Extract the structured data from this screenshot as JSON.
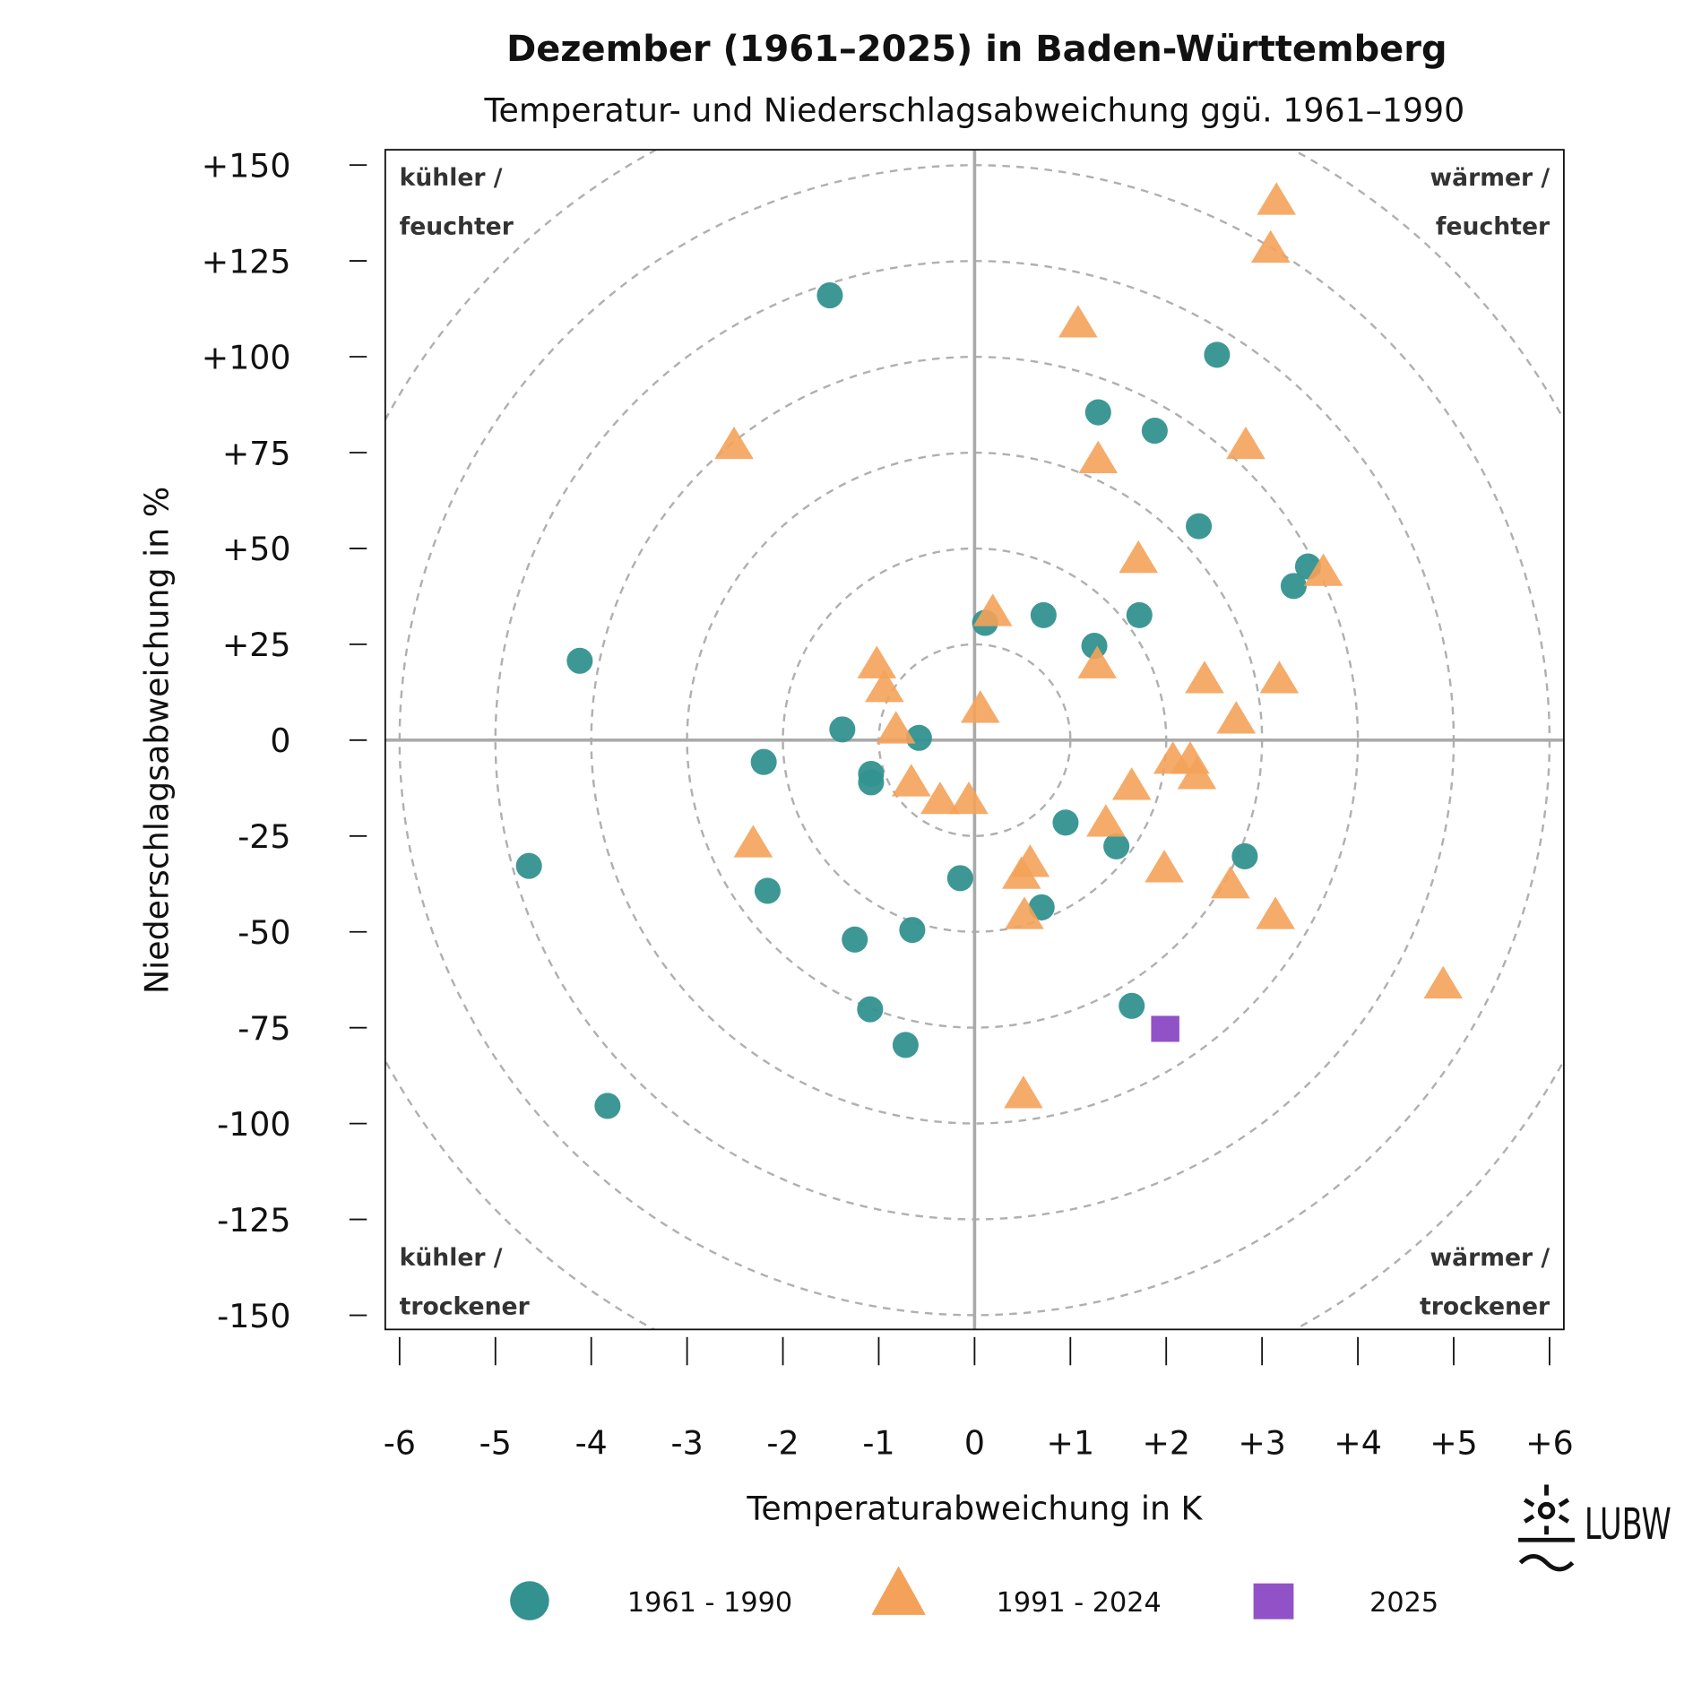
{
  "chart_data": {
    "type": "scatter",
    "title": "Dezember (1961–2025) in Baden-Württemberg",
    "subtitle": "Temperatur- und Niederschlagsabweichung ggü. 1961–1990",
    "xlabel": "Temperaturabweichung in K",
    "ylabel": "Niederschlagsabweichung in %",
    "xlim": [
      -6,
      6
    ],
    "ylim": [
      -150,
      150
    ],
    "x_ticks": [
      "-6",
      "-5",
      "-4",
      "-3",
      "-2",
      "-1",
      "0",
      "+1",
      "+2",
      "+3",
      "+4",
      "+5",
      "+6"
    ],
    "y_ticks": [
      "+150",
      "+125",
      "+100",
      "+75",
      "+50",
      "+25",
      "0",
      "-25",
      "-50",
      "-75",
      "-100",
      "-125",
      "-150"
    ],
    "grid": "concentric dashed circles",
    "legend_position": "bottom",
    "quadrants": {
      "tl": [
        "kühler /",
        "feuchter"
      ],
      "tr": [
        "wärmer /",
        "feuchter"
      ],
      "bl": [
        "kühler /",
        "trockener"
      ],
      "br": [
        "wärmer /",
        "trockener"
      ]
    },
    "series": [
      {
        "name": "1961 - 1990",
        "marker": "circle",
        "color": "#33928f",
        "points": [
          [
            -1.51,
            116
          ],
          [
            2.53,
            100.5
          ],
          [
            1.29,
            85.5
          ],
          [
            1.88,
            80.7
          ],
          [
            2.34,
            55.8
          ],
          [
            3.48,
            45.3
          ],
          [
            3.33,
            40.2
          ],
          [
            0.11,
            30.6
          ],
          [
            0.72,
            32.6
          ],
          [
            1.72,
            32.6
          ],
          [
            1.25,
            24.6
          ],
          [
            -4.12,
            20.7
          ],
          [
            -1.38,
            2.8
          ],
          [
            -0.58,
            0.6
          ],
          [
            -2.2,
            -5.7
          ],
          [
            -1.08,
            -8.8
          ],
          [
            -1.08,
            -11
          ],
          [
            0.95,
            -21.5
          ],
          [
            1.48,
            -27.7
          ],
          [
            2.82,
            -30.3
          ],
          [
            -4.65,
            -32.8
          ],
          [
            -0.15,
            -36
          ],
          [
            -2.16,
            -39.3
          ],
          [
            0.7,
            -43.6
          ],
          [
            -0.65,
            -49.5
          ],
          [
            -1.25,
            -52
          ],
          [
            -1.09,
            -70.2
          ],
          [
            1.64,
            -69.3
          ],
          [
            -0.72,
            -79.5
          ],
          [
            -3.83,
            -95.4
          ]
        ]
      },
      {
        "name": "1991 - 2024",
        "marker": "triangle",
        "color": "#f4a259",
        "points": [
          [
            3.15,
            140.7
          ],
          [
            3.09,
            128.2
          ],
          [
            1.08,
            108.7
          ],
          [
            -2.51,
            77
          ],
          [
            2.83,
            77
          ],
          [
            1.29,
            73.3
          ],
          [
            1.71,
            47.3
          ],
          [
            3.64,
            43.9
          ],
          [
            0.19,
            33.4
          ],
          [
            -1.02,
            19.8
          ],
          [
            1.28,
            19.8
          ],
          [
            -0.94,
            13.6
          ],
          [
            2.4,
            15.9
          ],
          [
            3.18,
            15.9
          ],
          [
            0.06,
            8.2
          ],
          [
            2.73,
            5.4
          ],
          [
            -0.82,
            2.8
          ],
          [
            2.07,
            -5.1
          ],
          [
            2.25,
            -5.1
          ],
          [
            2.32,
            -9.1
          ],
          [
            -0.66,
            -11
          ],
          [
            1.64,
            -11.9
          ],
          [
            -0.36,
            -15.6
          ],
          [
            -0.06,
            -15.6
          ],
          [
            1.37,
            -21.5
          ],
          [
            -2.31,
            -26.9
          ],
          [
            0.58,
            -32
          ],
          [
            0.49,
            -35.1
          ],
          [
            1.98,
            -33.4
          ],
          [
            2.67,
            -37.6
          ],
          [
            3.14,
            -45.6
          ],
          [
            0.52,
            -45.6
          ],
          [
            4.89,
            -63.7
          ],
          [
            0.51,
            -92.3
          ]
        ]
      },
      {
        "name": "2025",
        "marker": "square",
        "color": "#9152c8",
        "points": [
          [
            1.99,
            -75.3
          ]
        ]
      }
    ],
    "logo_text": "LUBW"
  }
}
